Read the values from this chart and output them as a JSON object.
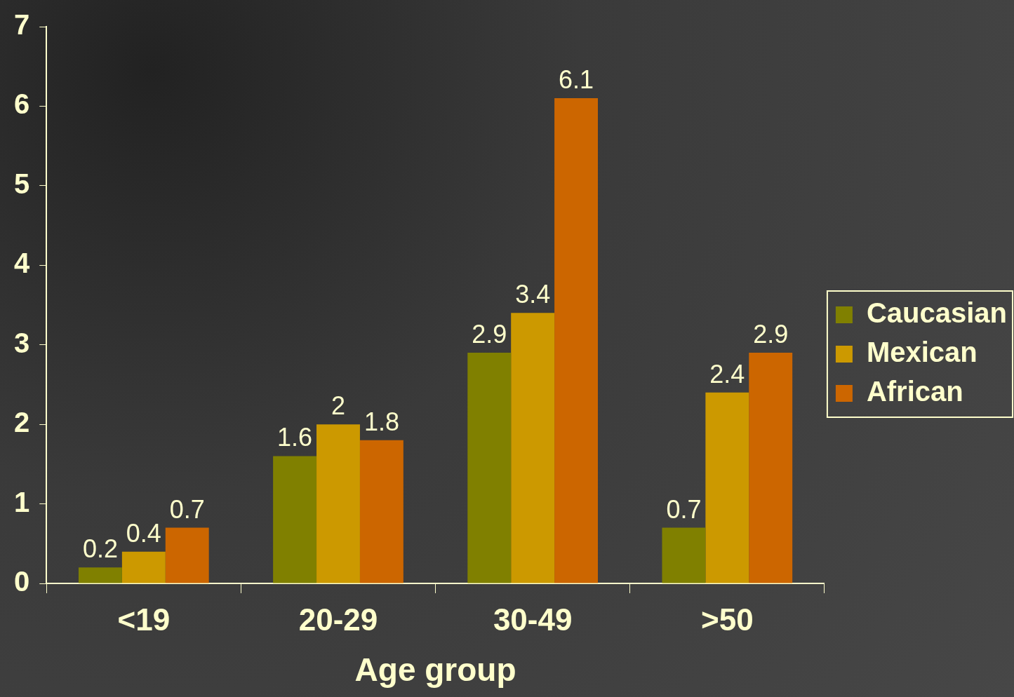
{
  "chart_data": {
    "type": "bar",
    "xlabel": "Age group",
    "categories": [
      "<19",
      "20-29",
      "30-49",
      ">50"
    ],
    "series": [
      {
        "name": "Caucasian",
        "color": "#808000",
        "values": [
          0.2,
          1.6,
          2.9,
          0.7
        ]
      },
      {
        "name": "Mexican",
        "color": "#cc9900",
        "values": [
          0.4,
          2,
          3.4,
          2.4
        ]
      },
      {
        "name": "African",
        "color": "#cc6600",
        "values": [
          0.7,
          1.8,
          6.1,
          2.9
        ]
      }
    ],
    "ylim": [
      0,
      7
    ],
    "yticks": [
      0,
      1,
      2,
      3,
      4,
      5,
      6,
      7
    ],
    "grid": false,
    "legend": "right",
    "data_labels": true
  }
}
